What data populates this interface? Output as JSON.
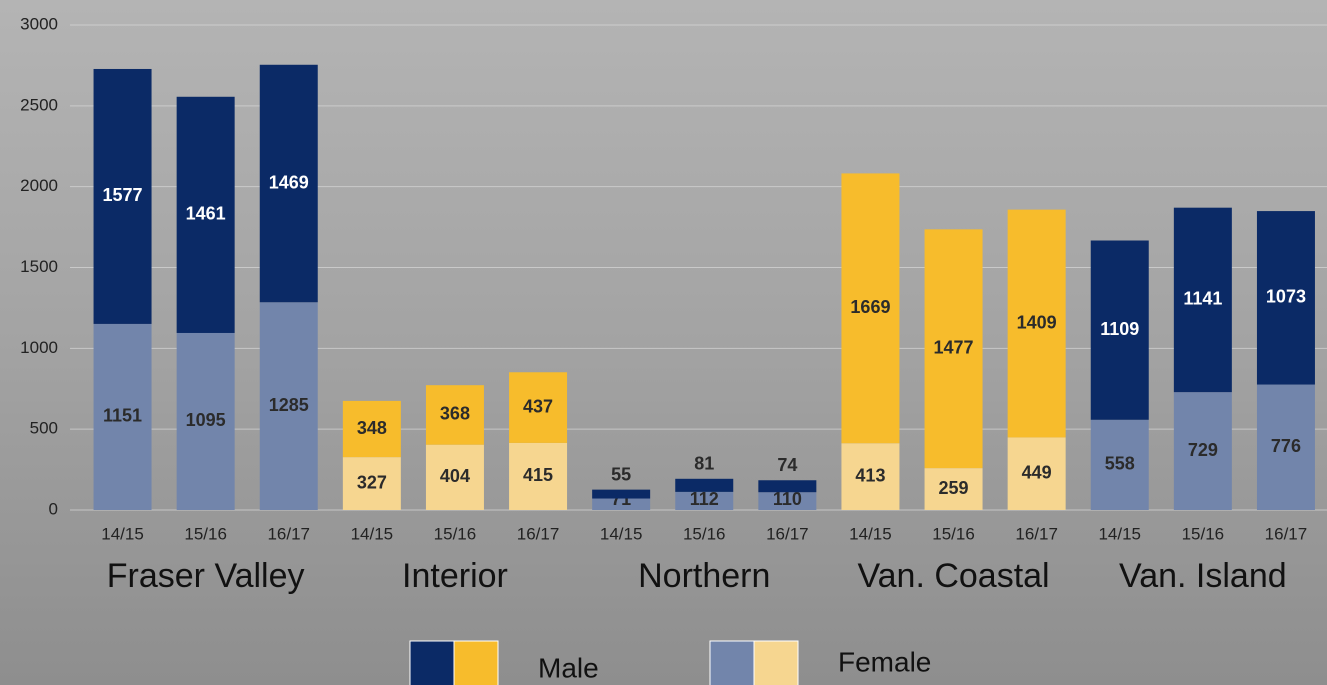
{
  "chart_data": {
    "type": "grouped-stacked-bar",
    "categories": [
      "14/15",
      "15/16",
      "16/17",
      "14/15",
      "15/16",
      "16/17",
      "14/15",
      "15/16",
      "16/17",
      "14/15",
      "15/16",
      "16/17",
      "14/15",
      "15/16",
      "16/17"
    ],
    "groups": [
      {
        "name": "Fraser Valley",
        "palette": 0
      },
      {
        "name": "Interior",
        "palette": 1
      },
      {
        "name": "Northern",
        "palette": 0
      },
      {
        "name": "Van. Coastal",
        "palette": 1
      },
      {
        "name": "Van. Island",
        "palette": 0
      }
    ],
    "series": [
      {
        "name": "Female",
        "colors": [
          "#7285ab",
          "#f6d690"
        ],
        "values": [
          1151,
          1095,
          1285,
          327,
          404,
          415,
          71,
          112,
          110,
          413,
          259,
          449,
          558,
          729,
          776
        ]
      },
      {
        "name": "Male",
        "colors": [
          "#0b2a66",
          "#f7bc2c"
        ],
        "values": [
          1577,
          1461,
          1469,
          348,
          368,
          437,
          55,
          81,
          74,
          1669,
          1477,
          1409,
          1109,
          1141,
          1073
        ]
      }
    ],
    "ylim": [
      0,
      3000
    ],
    "yticks": [
      0,
      500,
      1000,
      1500,
      2000,
      2500,
      3000
    ],
    "grid": true
  }
}
